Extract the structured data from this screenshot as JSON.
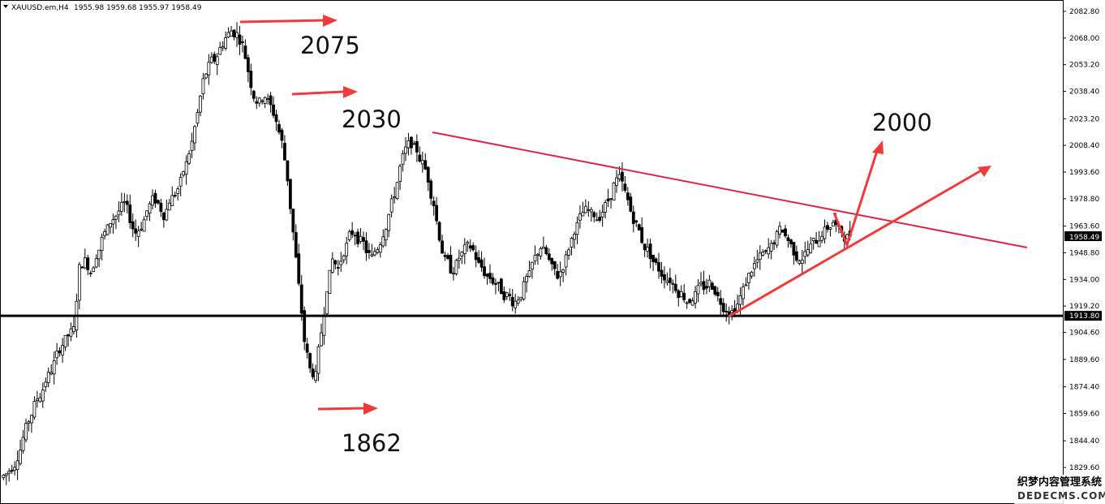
{
  "header": {
    "symbol_timeframe": "XAUUSD.em,H4",
    "ohlc": "1955.98 1959.68 1955.97 1958.49"
  },
  "annotations": {
    "high_label": "2075",
    "mid_label": "2030",
    "low_label": "1862",
    "target_label": "2000"
  },
  "watermark": {
    "line1": "织梦内容管理系统",
    "line2": "DEDECMS.COM"
  },
  "colors": {
    "candle": "#000000",
    "arrow": "#ef3b3b",
    "trendline": "#d9264a",
    "support_line": "#000000",
    "price_tag_bg": "#000000",
    "price_tag_text": "#ffffff"
  },
  "chart_data": {
    "type": "candlestick",
    "symbol": "XAUUSD.em",
    "timeframe": "H4",
    "ylim": [
      1820,
      2090
    ],
    "y_ticks": [
      "2082.80",
      "2068.00",
      "2053.20",
      "2038.40",
      "2023.20",
      "2008.40",
      "1993.60",
      "1978.80",
      "1963.60",
      "1948.80",
      "1934.00",
      "1919.20",
      "1904.60",
      "1889.60",
      "1874.40",
      "1859.60",
      "1844.40",
      "1829.60"
    ],
    "current_price": "1958.49",
    "support_level": "1913.80",
    "levels": {
      "high": 2075,
      "mid": 2030,
      "low": 1862,
      "target": 2000
    },
    "close_path": [
      1826,
      1830,
      1836,
      1846,
      1856,
      1864,
      1870,
      1878,
      1884,
      1892,
      1898,
      1903,
      1906,
      1940,
      1944,
      1938,
      1948,
      1956,
      1962,
      1968,
      1972,
      1976,
      1968,
      1960,
      1964,
      1972,
      1978,
      1976,
      1970,
      1978,
      1982,
      1988,
      1998,
      2010,
      2026,
      2044,
      2052,
      2056,
      2062,
      2068,
      2072,
      2070,
      2064,
      2050,
      2036,
      2032,
      2036,
      2030,
      2022,
      2010,
      1990,
      1960,
      1930,
      1900,
      1884,
      1880,
      1905,
      1930,
      1945,
      1940,
      1950,
      1958,
      1960,
      1955,
      1950,
      1946,
      1952,
      1960,
      1970,
      1982,
      1996,
      2006,
      2010,
      2006,
      1998,
      1990,
      1976,
      1958,
      1944,
      1940,
      1942,
      1948,
      1952,
      1950,
      1942,
      1938,
      1935,
      1932,
      1928,
      1925,
      1922,
      1924,
      1930,
      1936,
      1946,
      1952,
      1948,
      1940,
      1936,
      1942,
      1952,
      1962,
      1968,
      1972,
      1970,
      1968,
      1972,
      1978,
      1986,
      1990,
      1982,
      1972,
      1964,
      1956,
      1950,
      1944,
      1940,
      1936,
      1934,
      1930,
      1926,
      1922,
      1924,
      1928,
      1930,
      1932,
      1928,
      1922,
      1918,
      1916,
      1920,
      1928,
      1936,
      1942,
      1946,
      1948,
      1952,
      1958,
      1962,
      1956,
      1950,
      1946,
      1948,
      1952,
      1956,
      1960,
      1963,
      1966,
      1961,
      1958,
      1959
    ]
  }
}
